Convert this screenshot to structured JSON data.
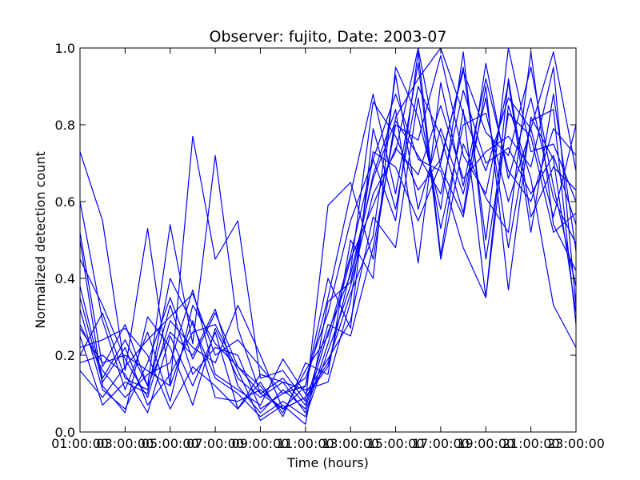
{
  "chart_data": {
    "type": "line",
    "title": "Observer: fujito, Date: 2003-07",
    "xlabel": "Time (hours)",
    "ylabel": "Normalized detection count",
    "x": [
      "01:00:00",
      "02:00:00",
      "03:00:00",
      "04:00:00",
      "05:00:00",
      "06:00:00",
      "07:00:00",
      "08:00:00",
      "09:00:00",
      "10:00:00",
      "11:00:00",
      "12:00:00",
      "13:00:00",
      "14:00:00",
      "15:00:00",
      "16:00:00",
      "17:00:00",
      "18:00:00",
      "19:00:00",
      "20:00:00",
      "21:00:00",
      "22:00:00",
      "23:00:00"
    ],
    "xticks": [
      "01:00:00",
      "03:00:00",
      "05:00:00",
      "07:00:00",
      "09:00:00",
      "11:00:00",
      "13:00:00",
      "15:00:00",
      "17:00:00",
      "19:00:00",
      "21:00:00",
      "23:00:00"
    ],
    "yticks": [
      "0.0",
      "0.2",
      "0.4",
      "0.6",
      "0.8",
      "1.0"
    ],
    "ylim": [
      0,
      1
    ],
    "line_color": "#0000ff",
    "grid": false,
    "series": [
      {
        "values": [
          0.73,
          0.55,
          0.16,
          0.53,
          0.12,
          0.77,
          0.45,
          0.55,
          0.14,
          0.16,
          0.08,
          0.59,
          0.65,
          0.45,
          0.82,
          0.92,
          1.0,
          0.83,
          0.68,
          0.87,
          0.79,
          0.56,
          0.8
        ]
      },
      {
        "values": [
          0.52,
          0.17,
          0.28,
          0.12,
          0.54,
          0.23,
          0.72,
          0.27,
          0.1,
          0.06,
          0.12,
          0.35,
          0.62,
          0.88,
          0.62,
          0.96,
          0.45,
          0.75,
          0.61,
          0.52,
          0.99,
          0.54,
          0.42
        ]
      },
      {
        "values": [
          0.32,
          0.11,
          0.06,
          0.18,
          0.35,
          0.19,
          0.31,
          0.17,
          0.12,
          0.05,
          0.16,
          0.25,
          0.46,
          0.71,
          0.88,
          0.71,
          0.68,
          0.48,
          0.35,
          0.85,
          0.66,
          0.33,
          0.22
        ]
      },
      {
        "values": [
          0.25,
          0.07,
          0.13,
          0.1,
          0.4,
          0.28,
          0.14,
          0.1,
          0.04,
          0.08,
          0.04,
          0.21,
          0.38,
          0.62,
          0.73,
          1.0,
          0.69,
          0.56,
          0.9,
          0.37,
          0.82,
          0.71,
          0.31
        ]
      },
      {
        "values": [
          0.18,
          0.2,
          0.15,
          0.05,
          0.25,
          0.12,
          0.26,
          0.06,
          0.15,
          0.13,
          0.11,
          0.13,
          0.34,
          0.73,
          0.69,
          0.55,
          0.7,
          0.95,
          0.5,
          1.0,
          0.73,
          0.75,
          0.6
        ]
      },
      {
        "values": [
          0.28,
          0.16,
          0.09,
          0.15,
          0.18,
          0.37,
          0.15,
          0.11,
          0.07,
          0.19,
          0.1,
          0.19,
          0.29,
          0.56,
          0.48,
          0.87,
          0.53,
          0.8,
          0.83,
          0.6,
          0.79,
          0.99,
          0.68
        ]
      },
      {
        "values": [
          0.6,
          0.29,
          0.11,
          0.26,
          0.08,
          0.33,
          0.23,
          0.17,
          0.1,
          0.14,
          0.07,
          0.28,
          0.25,
          0.48,
          0.8,
          0.76,
          0.98,
          0.72,
          0.62,
          0.91,
          0.52,
          0.88,
          0.47
        ]
      },
      {
        "values": [
          0.45,
          0.33,
          0.19,
          0.09,
          0.29,
          0.22,
          0.18,
          0.33,
          0.2,
          0.06,
          0.09,
          0.17,
          0.42,
          0.86,
          0.77,
          0.63,
          0.71,
          0.94,
          0.78,
          0.72,
          0.95,
          0.64,
          0.38
        ]
      },
      {
        "values": [
          0.35,
          0.13,
          0.22,
          0.07,
          0.15,
          0.26,
          0.28,
          0.16,
          0.03,
          0.07,
          0.02,
          0.34,
          0.39,
          0.67,
          0.84,
          0.44,
          0.91,
          0.64,
          0.92,
          0.68,
          0.6,
          0.79,
          0.72
        ]
      },
      {
        "values": [
          0.22,
          0.24,
          0.27,
          0.2,
          0.06,
          0.17,
          0.12,
          0.06,
          0.13,
          0.04,
          0.18,
          0.15,
          0.5,
          0.4,
          0.95,
          0.82,
          0.58,
          0.99,
          0.45,
          0.83,
          0.77,
          0.52,
          0.57
        ]
      },
      {
        "values": [
          0.16,
          0.09,
          0.17,
          0.24,
          0.3,
          0.36,
          0.2,
          0.24,
          0.17,
          0.1,
          0.12,
          0.4,
          0.27,
          0.79,
          0.58,
          0.9,
          0.77,
          0.57,
          0.96,
          0.66,
          0.87,
          0.61,
          0.49
        ]
      },
      {
        "values": [
          0.5,
          0.12,
          0.05,
          0.3,
          0.22,
          0.07,
          0.27,
          0.14,
          0.09,
          0.13,
          0.05,
          0.23,
          0.45,
          0.59,
          0.74,
          0.67,
          0.85,
          0.66,
          0.73,
          0.77,
          0.69,
          0.95,
          0.33
        ]
      },
      {
        "values": [
          0.2,
          0.31,
          0.14,
          0.11,
          0.33,
          0.15,
          0.22,
          0.2,
          0.06,
          0.1,
          0.14,
          0.31,
          0.55,
          0.71,
          0.55,
          0.99,
          0.46,
          0.84,
          0.35,
          0.92,
          0.56,
          0.69,
          0.63
        ]
      },
      {
        "values": [
          0.27,
          0.18,
          0.2,
          0.16,
          0.12,
          0.29,
          0.09,
          0.08,
          0.11,
          0.06,
          0.09,
          0.18,
          0.36,
          0.51,
          0.93,
          0.58,
          0.79,
          0.62,
          0.87,
          0.48,
          0.81,
          0.84,
          0.28
        ]
      },
      {
        "values": [
          0.38,
          0.14,
          0.24,
          0.12,
          0.26,
          0.2,
          0.32,
          0.12,
          0.05,
          0.11,
          0.06,
          0.26,
          0.41,
          0.66,
          0.81,
          0.72,
          0.62,
          0.89,
          0.7,
          0.74,
          0.62,
          0.72,
          0.54
        ]
      }
    ]
  }
}
